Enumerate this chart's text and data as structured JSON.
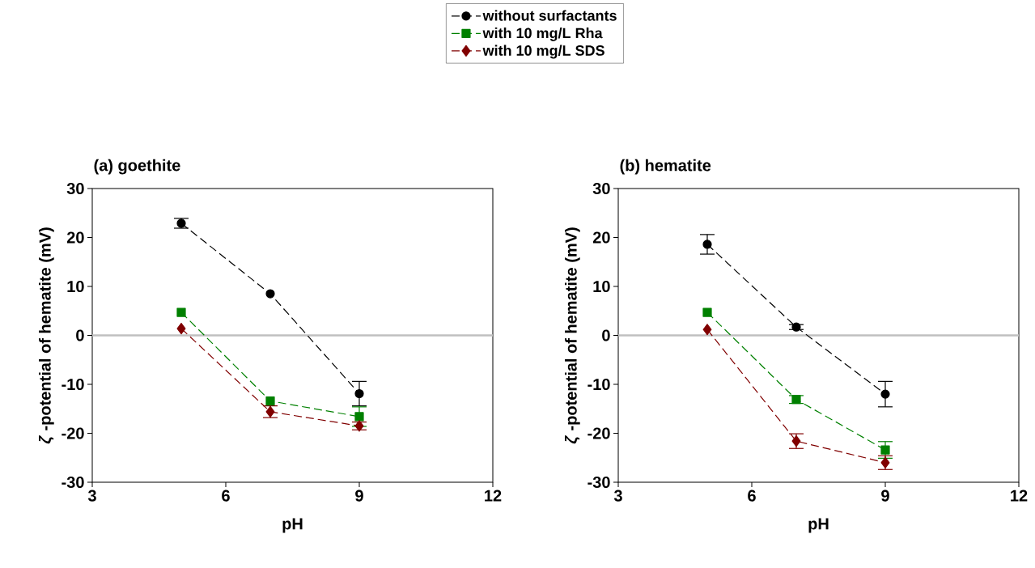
{
  "chart_data": [
    {
      "type": "line",
      "title": "(a) goethite",
      "xlabel": "pH",
      "ylabel": "*ζ* -potential of hematite (mV)",
      "x": [
        5,
        7,
        9
      ],
      "xlim": [
        3,
        12
      ],
      "xticks": [
        3,
        6,
        9,
        12
      ],
      "ylim": [
        -30,
        30
      ],
      "yticks": [
        -30,
        -20,
        -10,
        0,
        10,
        20,
        30
      ],
      "grid": false,
      "legend": "top",
      "line_style": "dashed",
      "ref_lines": [
        {
          "axis": "y",
          "value": 0,
          "color": "#c0c0c0"
        }
      ],
      "series": [
        {
          "name": "without surfactants",
          "color": "#000000",
          "marker": "circle",
          "values": [
            22.9,
            8.5,
            -11.9
          ],
          "errors": [
            1,
            null,
            2.5
          ]
        },
        {
          "name": "with 10 mg/L Rha",
          "color": "#008000",
          "marker": "square",
          "values": [
            4.7,
            -13.4,
            -16.6
          ],
          "errors": [
            null,
            null,
            2
          ]
        },
        {
          "name": "with 10 mg/L SDS",
          "color": "#800000",
          "marker": "diamond",
          "values": [
            1.4,
            -15.6,
            -18.5
          ],
          "errors": [
            null,
            1.2,
            0.8
          ]
        }
      ]
    },
    {
      "type": "line",
      "title": "(b) hematite",
      "xlabel": "pH",
      "ylabel": "*ζ* -potential of hematite (mV)",
      "x": [
        5,
        7,
        9
      ],
      "xlim": [
        3,
        12
      ],
      "xticks": [
        3,
        6,
        9,
        12
      ],
      "ylim": [
        -30,
        30
      ],
      "yticks": [
        -30,
        -20,
        -10,
        0,
        10,
        20,
        30
      ],
      "grid": false,
      "legend": false,
      "line_style": "dashed",
      "ref_lines": [
        {
          "axis": "y",
          "value": 0,
          "color": "#c0c0c0"
        }
      ],
      "series": [
        {
          "color": "#000000",
          "marker": "circle",
          "values": [
            18.6,
            1.7,
            -12.0
          ],
          "errors": [
            2,
            0.5,
            2.6
          ]
        },
        {
          "color": "#008000",
          "marker": "square",
          "values": [
            4.7,
            -13.1,
            -23.4
          ],
          "errors": [
            null,
            0.8,
            1.7
          ]
        },
        {
          "color": "#800000",
          "marker": "diamond",
          "values": [
            1.2,
            -21.6,
            -26.0
          ],
          "errors": [
            null,
            1.5,
            1.4
          ]
        }
      ]
    }
  ]
}
